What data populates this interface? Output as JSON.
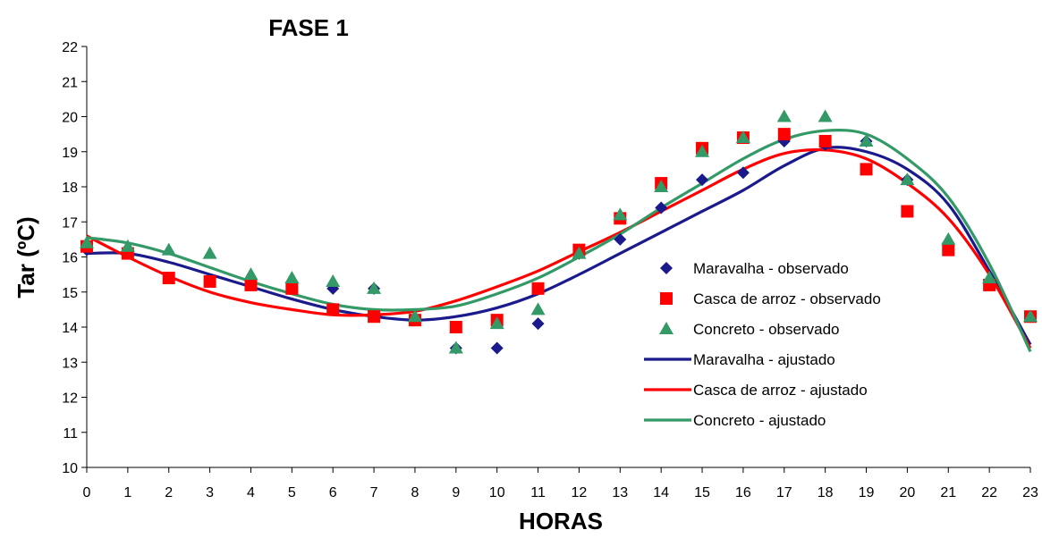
{
  "chart_data": {
    "type": "scatter",
    "title": "FASE 1",
    "xlabel": "HORAS",
    "ylabel": "Tar (ºC)",
    "xlim": [
      0,
      23
    ],
    "ylim": [
      10,
      22
    ],
    "x_ticks": [
      0,
      1,
      2,
      3,
      4,
      5,
      6,
      7,
      8,
      9,
      10,
      11,
      12,
      13,
      14,
      15,
      16,
      17,
      18,
      19,
      20,
      21,
      22,
      23
    ],
    "y_ticks": [
      10,
      11,
      12,
      13,
      14,
      15,
      16,
      17,
      18,
      19,
      20,
      21,
      22
    ],
    "grid": false,
    "legend_position": "right",
    "series": [
      {
        "name": "Maravalha - observado",
        "kind": "marker",
        "marker": "diamond",
        "color": "#1A1A8C",
        "x": [
          0,
          1,
          2,
          3,
          4,
          5,
          6,
          7,
          8,
          9,
          10,
          11,
          12,
          13,
          14,
          15,
          16,
          17,
          18,
          19,
          20,
          21,
          22,
          23
        ],
        "y": [
          16.2,
          16.1,
          15.4,
          15.3,
          15.2,
          15.1,
          15.1,
          15.1,
          14.2,
          13.4,
          13.4,
          14.1,
          16.1,
          16.5,
          17.4,
          18.2,
          18.4,
          19.3,
          19.2,
          19.3,
          18.2,
          16.4,
          15.3,
          14.3
        ]
      },
      {
        "name": "Casca de arroz - observado",
        "kind": "marker",
        "marker": "square",
        "color": "#FF0000",
        "x": [
          0,
          1,
          2,
          3,
          4,
          5,
          6,
          7,
          8,
          9,
          10,
          11,
          12,
          13,
          14,
          15,
          16,
          17,
          18,
          19,
          20,
          21,
          22,
          23
        ],
        "y": [
          16.3,
          16.1,
          15.4,
          15.3,
          15.2,
          15.1,
          14.5,
          14.3,
          14.2,
          14.0,
          14.2,
          15.1,
          16.2,
          17.1,
          18.1,
          19.1,
          19.4,
          19.5,
          19.3,
          18.5,
          17.3,
          16.2,
          15.2,
          14.3
        ]
      },
      {
        "name": "Concreto - observado",
        "kind": "marker",
        "marker": "triangle",
        "color": "#339966",
        "x": [
          0,
          1,
          2,
          3,
          4,
          5,
          6,
          7,
          8,
          9,
          10,
          11,
          12,
          13,
          14,
          15,
          16,
          17,
          18,
          19,
          20,
          21,
          22,
          23
        ],
        "y": [
          16.4,
          16.3,
          16.2,
          16.1,
          15.5,
          15.4,
          15.3,
          15.1,
          14.3,
          13.4,
          14.1,
          14.5,
          16.1,
          17.2,
          18.0,
          19.0,
          19.4,
          20.0,
          20.0,
          19.3,
          18.2,
          16.5,
          15.4,
          14.3
        ]
      },
      {
        "name": "Maravalha - ajustado",
        "kind": "line",
        "color": "#1A1A8C",
        "x": [
          0,
          1,
          2,
          3,
          4,
          5,
          6,
          7,
          8,
          9,
          10,
          11,
          12,
          13,
          14,
          15,
          16,
          17,
          18,
          19,
          20,
          21,
          22,
          23
        ],
        "y": [
          16.1,
          16.1,
          15.85,
          15.5,
          15.15,
          14.8,
          14.5,
          14.3,
          14.2,
          14.3,
          14.55,
          14.95,
          15.5,
          16.1,
          16.7,
          17.3,
          17.9,
          18.6,
          19.1,
          19.0,
          18.5,
          17.5,
          15.6,
          13.5
        ]
      },
      {
        "name": "Casca de arroz - ajustado",
        "kind": "line",
        "color": "#FF0000",
        "x": [
          0,
          1,
          2,
          3,
          4,
          5,
          6,
          7,
          8,
          9,
          10,
          11,
          12,
          13,
          14,
          15,
          16,
          17,
          18,
          19,
          20,
          21,
          22,
          23
        ],
        "y": [
          16.6,
          16.0,
          15.45,
          15.0,
          14.7,
          14.5,
          14.35,
          14.35,
          14.45,
          14.75,
          15.15,
          15.6,
          16.15,
          16.7,
          17.3,
          17.9,
          18.5,
          18.95,
          19.05,
          18.8,
          18.1,
          17.1,
          15.5,
          13.4
        ]
      },
      {
        "name": "Concreto - ajustado",
        "kind": "line",
        "color": "#339966",
        "x": [
          0,
          1,
          2,
          3,
          4,
          5,
          6,
          7,
          8,
          9,
          10,
          11,
          12,
          13,
          14,
          15,
          16,
          17,
          18,
          19,
          20,
          21,
          22,
          23
        ],
        "y": [
          16.55,
          16.4,
          16.1,
          15.7,
          15.3,
          14.95,
          14.65,
          14.5,
          14.5,
          14.6,
          14.95,
          15.4,
          16.0,
          16.65,
          17.4,
          18.1,
          18.8,
          19.35,
          19.6,
          19.5,
          18.8,
          17.7,
          15.8,
          13.3
        ]
      }
    ]
  }
}
